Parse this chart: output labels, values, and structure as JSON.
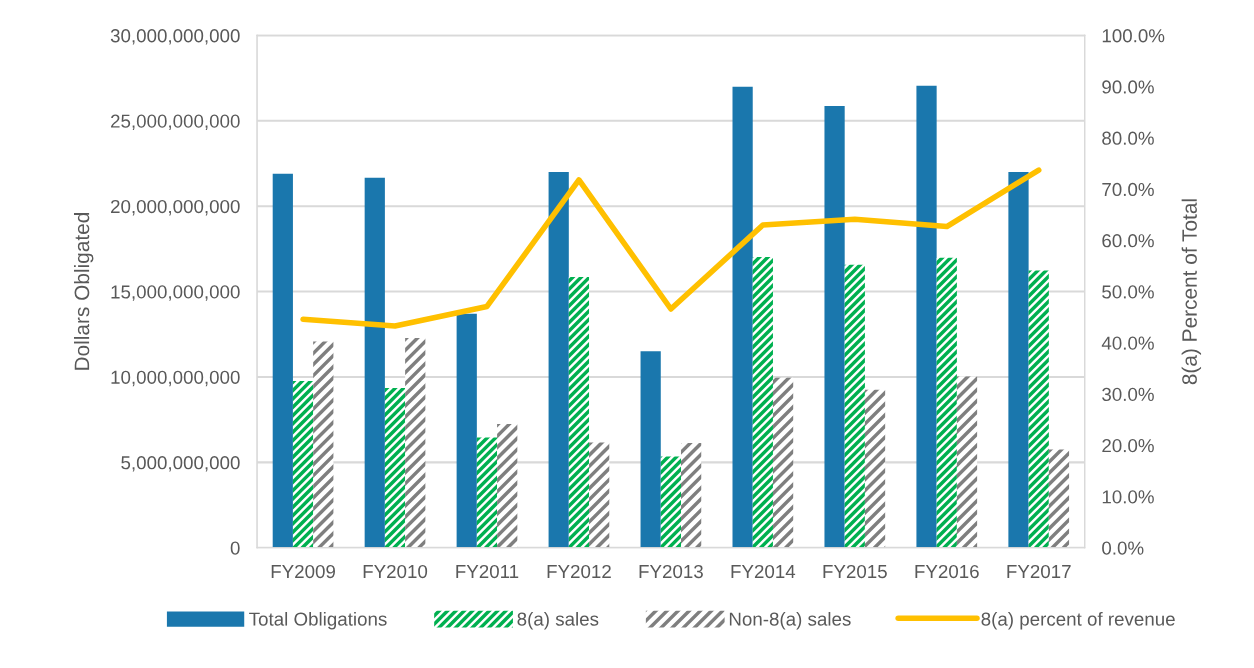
{
  "chart_data": {
    "type": "bar",
    "ylabel": "Dollars Obligated",
    "y2label": "8(a) Percent of Total",
    "categories": [
      "FY2009",
      "FY2010",
      "FY2011",
      "FY2012",
      "FY2013",
      "FY2014",
      "FY2015",
      "FY2016",
      "FY2017"
    ],
    "series": [
      {
        "name": "Total Obligations",
        "color": "#1a77ad",
        "values": [
          21900000000,
          21670000000,
          13700000000,
          22000000000,
          11500000000,
          27000000000,
          25860000000,
          27050000000,
          22000000000
        ]
      },
      {
        "name": "8(a) sales",
        "color": "#00b050",
        "values": [
          9760000000,
          9350000000,
          6460000000,
          15850000000,
          5350000000,
          17020000000,
          16570000000,
          16980000000,
          16240000000
        ]
      },
      {
        "name": "Non-8(a) sales",
        "color": "#7f7f7f",
        "values": [
          12080000000,
          12280000000,
          7240000000,
          6170000000,
          6130000000,
          9950000000,
          9250000000,
          10030000000,
          5760000000
        ]
      },
      {
        "name": "8(a) percent of revenue",
        "type": "line",
        "axis": "y2",
        "color": "#ffc000",
        "values": [
          44.6,
          43.3,
          47.1,
          71.8,
          46.6,
          63.0,
          64.1,
          62.7,
          73.7
        ]
      }
    ],
    "ylim": [
      0,
      30000000000
    ],
    "yticks": [
      {
        "value": 0,
        "label": "0"
      },
      {
        "value": 5000000000,
        "label": "5,000,000,000"
      },
      {
        "value": 10000000000,
        "label": "10,000,000,000"
      },
      {
        "value": 15000000000,
        "label": "15,000,000,000"
      },
      {
        "value": 20000000000,
        "label": "20,000,000,000"
      },
      {
        "value": 25000000000,
        "label": "25,000,000,000"
      },
      {
        "value": 30000000000,
        "label": "30,000,000,000"
      }
    ],
    "y2lim": [
      0,
      100
    ],
    "y2ticks": [
      {
        "value": 0,
        "label": "0.0%"
      },
      {
        "value": 10,
        "label": "10.0%"
      },
      {
        "value": 20,
        "label": "20.0%"
      },
      {
        "value": 30,
        "label": "30.0%"
      },
      {
        "value": 40,
        "label": "40.0%"
      },
      {
        "value": 50,
        "label": "50.0%"
      },
      {
        "value": 60,
        "label": "60.0%"
      },
      {
        "value": 70,
        "label": "70.0%"
      },
      {
        "value": 80,
        "label": "80.0%"
      },
      {
        "value": 90,
        "label": "90.0%"
      },
      {
        "value": 100,
        "label": "100.0%"
      }
    ],
    "grid": "y",
    "legend": "bottom",
    "marker": "none",
    "line_style": "solid"
  }
}
